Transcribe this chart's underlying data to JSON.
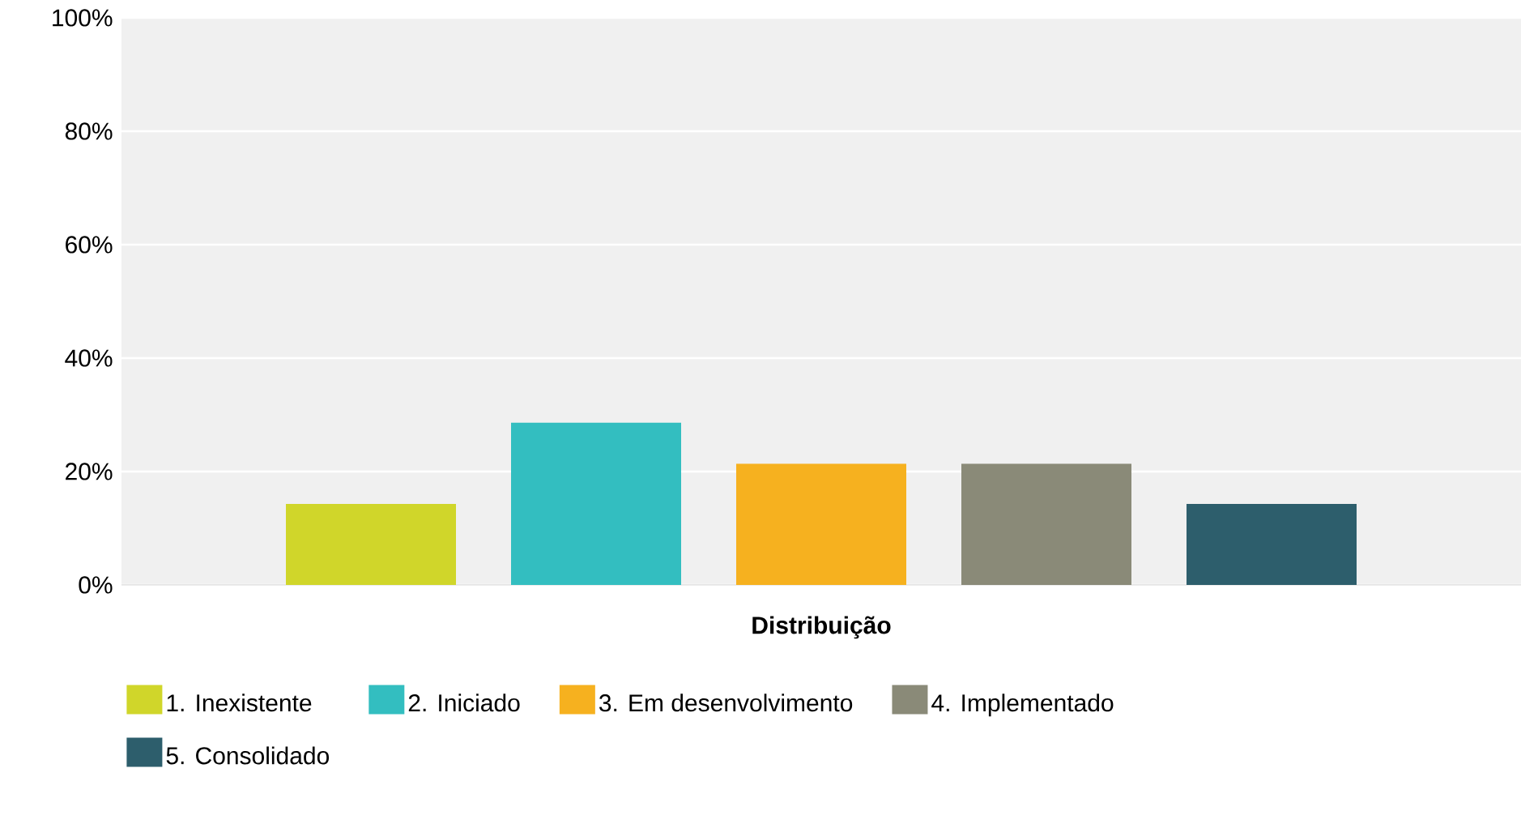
{
  "chart_data": {
    "type": "bar",
    "categories": [
      "Distribuição"
    ],
    "series": [
      {
        "name": "1. Inexistente",
        "color": "#d0d62a",
        "values": [
          14.3
        ]
      },
      {
        "name": "2. Iniciado",
        "color": "#33bec0",
        "values": [
          28.6
        ]
      },
      {
        "name": "3. Em desenvolvimento",
        "color": "#f6b11f",
        "values": [
          21.4
        ]
      },
      {
        "name": "4. Implementado",
        "color": "#8a8a78",
        "values": [
          21.4
        ]
      },
      {
        "name": "5. Consolidado",
        "color": "#2d5e6c",
        "values": [
          14.3
        ]
      }
    ],
    "ylim": [
      0,
      100
    ],
    "yticks": [
      {
        "value": 0,
        "label": "0%"
      },
      {
        "value": 20,
        "label": "20%"
      },
      {
        "value": 40,
        "label": "40%"
      },
      {
        "value": 60,
        "label": "60%"
      },
      {
        "value": 80,
        "label": "80%"
      },
      {
        "value": 100,
        "label": "100%"
      }
    ],
    "grid": "y",
    "legend": "bottom"
  }
}
